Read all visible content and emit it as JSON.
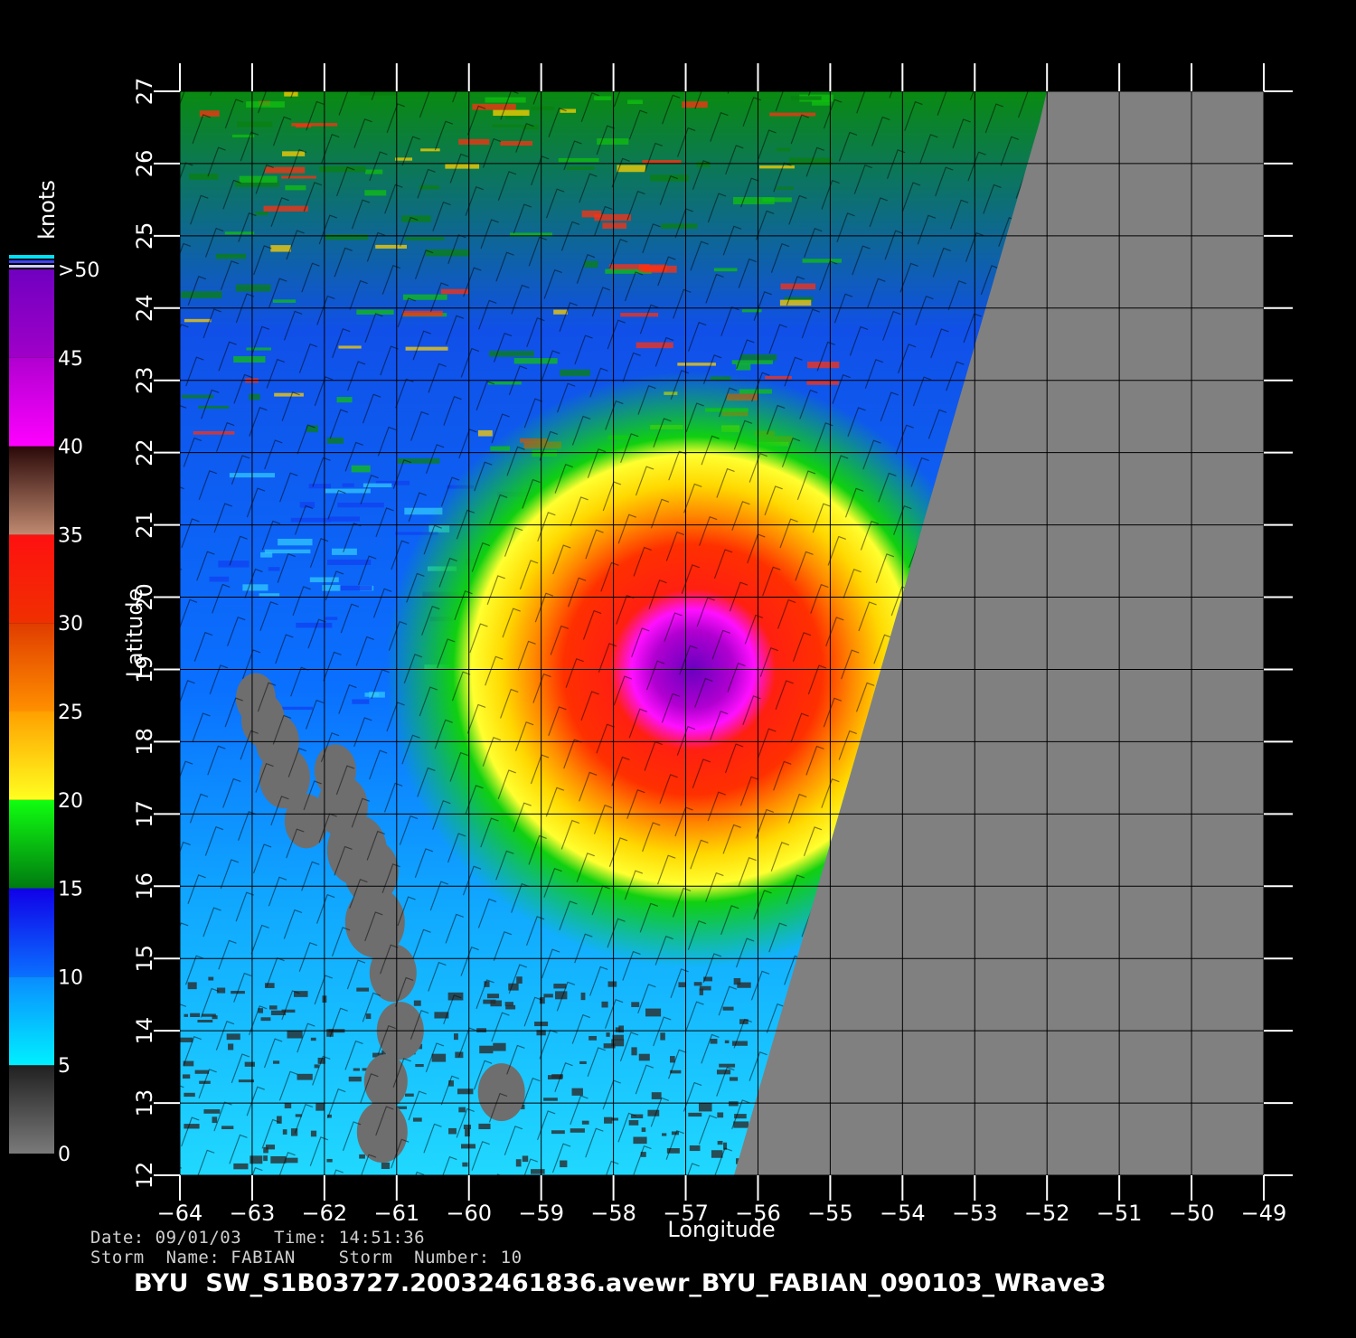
{
  "chart_data": {
    "type": "heatmap",
    "description_kind": "scatterometer wind speed map",
    "xlabel": "Longitude",
    "ylabel": "Latitude",
    "xlim": [
      -64,
      -49
    ],
    "ylim": [
      12,
      27
    ],
    "x_ticks": [
      -64,
      -63,
      -62,
      -61,
      -60,
      -59,
      -58,
      -57,
      -56,
      -55,
      -54,
      -53,
      -52,
      -51,
      -50,
      -49
    ],
    "y_ticks": [
      12,
      13,
      14,
      15,
      16,
      17,
      18,
      19,
      20,
      21,
      22,
      23,
      24,
      25,
      26,
      27
    ],
    "grid": true,
    "storm_center": {
      "lon": -56.9,
      "lat": 19.0
    },
    "no_data_color": "#808080",
    "colorbar": {
      "title": "knots",
      "labels": [
        "0",
        "5",
        "10",
        "15",
        "20",
        "25",
        "30",
        "35",
        "40",
        "45",
        ">50"
      ],
      "bins": [
        {
          "from": 0,
          "to": 5,
          "colors": [
            "#7a7a7a",
            "#202020"
          ]
        },
        {
          "from": 5,
          "to": 10,
          "colors": [
            "#00f0ff",
            "#0a8cff"
          ]
        },
        {
          "from": 10,
          "to": 15,
          "colors": [
            "#0a70ff",
            "#1000e8"
          ]
        },
        {
          "from": 15,
          "to": 20,
          "colors": [
            "#007a10",
            "#10ff10"
          ]
        },
        {
          "from": 20,
          "to": 25,
          "colors": [
            "#ffff20",
            "#ffa000"
          ]
        },
        {
          "from": 25,
          "to": 30,
          "colors": [
            "#ff9000",
            "#e03c00"
          ]
        },
        {
          "from": 30,
          "to": 35,
          "colors": [
            "#f03000",
            "#ff1010"
          ]
        },
        {
          "from": 35,
          "to": 40,
          "colors": [
            "#c08a70",
            "#2a0808"
          ]
        },
        {
          "from": 40,
          "to": 45,
          "colors": [
            "#ff00ff",
            "#b000d0"
          ]
        },
        {
          "from": 45,
          "to": 50,
          "colors": [
            "#a000c8",
            "#7000c0"
          ]
        }
      ]
    }
  },
  "meta": {
    "date_line": "Date: 09/01/03   Time: 14:51:36",
    "storm_line": "Storm  Name: FABIAN    Storm  Number: 10"
  },
  "footer": {
    "title": "BYU  SW_S1B03727.20032461836.avewr_BYU_FABIAN_090103_WRave3"
  }
}
